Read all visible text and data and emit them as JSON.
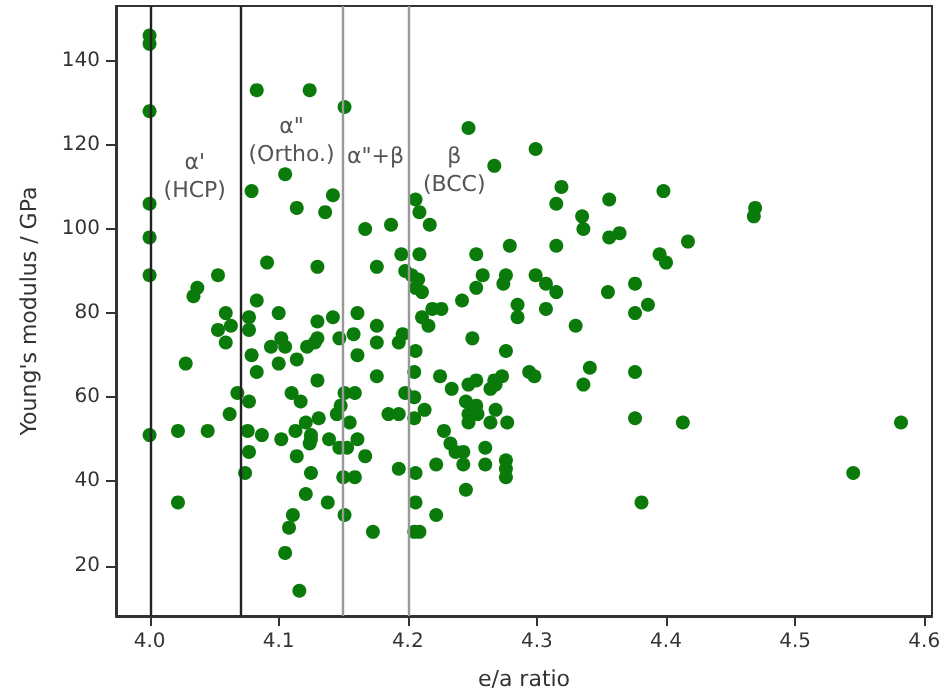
{
  "chart_data": {
    "type": "scatter",
    "xlabel": "e/a ratio",
    "ylabel": "Young's modulus / GPa",
    "xlim": [
      3.974,
      4.606
    ],
    "ylim": [
      8,
      153
    ],
    "xticks": [
      {
        "value": 4,
        "label": "4.0"
      },
      4.1,
      4.2,
      4.3,
      4.4,
      4.5,
      4.6
    ],
    "yticks": [
      20,
      40,
      60,
      80,
      100,
      120,
      140
    ],
    "grid": false,
    "marker": "circle",
    "ref_lines": [
      {
        "axis": "x",
        "value": 4.0,
        "color": "#222222"
      },
      {
        "axis": "x",
        "value": 4.07,
        "color": "#222222"
      },
      {
        "axis": "x",
        "value": 4.15,
        "color": "#999999"
      },
      {
        "axis": "x",
        "value": 4.2,
        "color": "#999999"
      }
    ],
    "annotations": [
      "α'\n(HCP)",
      "α\"\n(Ortho.)",
      "α\"+β",
      "β\n(BCC)"
    ],
    "series": [
      {
        "color": "#0a7a0a",
        "x": [
          4.0,
          4.0,
          4.0,
          4.0,
          4.0,
          4.0,
          4.0,
          4.083,
          4.124,
          4.151,
          4.105,
          4.079,
          4.142,
          4.114,
          4.136,
          4.167,
          4.187,
          4.091,
          4.13,
          4.176,
          4.195,
          4.198,
          4.053,
          4.037,
          4.034,
          4.083,
          4.059,
          4.053,
          4.063,
          4.059,
          4.077,
          4.077,
          4.1,
          4.13,
          4.142,
          4.161,
          4.176,
          4.196,
          4.102,
          4.094,
          4.105,
          4.122,
          4.128,
          4.13,
          4.147,
          4.158,
          4.176,
          4.193,
          4.079,
          4.1,
          4.114,
          4.161,
          4.028,
          4.083,
          4.176,
          4.13,
          4.068,
          4.077,
          4.11,
          4.117,
          4.151,
          4.159,
          4.148,
          4.198,
          4.062,
          4.145,
          4.185,
          4.193,
          4.131,
          4.155,
          4.121,
          4.113,
          4.125,
          4.022,
          4.045,
          4.076,
          4.087,
          4.102,
          4.125,
          4.124,
          4.139,
          4.147,
          4.153,
          4.161,
          4.167,
          4.077,
          4.114,
          4.125,
          4.193,
          4.074,
          4.15,
          4.159,
          4.121,
          4.022,
          4.138,
          4.151,
          4.111,
          4.108,
          4.173,
          4.105,
          4.116,
          4.247,
          4.299,
          4.267,
          4.319,
          4.206,
          4.315,
          4.356,
          4.398,
          4.209,
          4.217,
          4.335,
          4.336,
          4.356,
          4.364,
          4.279,
          4.315,
          4.417,
          4.209,
          4.253,
          4.395,
          4.4,
          4.203,
          4.208,
          4.206,
          4.211,
          4.258,
          4.253,
          4.276,
          4.274,
          4.299,
          4.307,
          4.315,
          4.242,
          4.285,
          4.285,
          4.307,
          4.33,
          4.355,
          4.376,
          4.376,
          4.386,
          4.211,
          4.219,
          4.226,
          4.216,
          4.206,
          4.25,
          4.276,
          4.205,
          4.225,
          4.247,
          4.253,
          4.267,
          4.273,
          4.264,
          4.268,
          4.294,
          4.298,
          4.341,
          4.336,
          4.376,
          4.234,
          4.205,
          4.245,
          4.253,
          4.247,
          4.254,
          4.268,
          4.213,
          4.205,
          4.247,
          4.264,
          4.277,
          4.228,
          4.233,
          4.237,
          4.243,
          4.243,
          4.26,
          4.26,
          4.276,
          4.276,
          4.276,
          4.206,
          4.222,
          4.245,
          4.206,
          4.222,
          4.205,
          4.209,
          4.376,
          4.413,
          4.381,
          4.469,
          4.468,
          4.582,
          4.545
        ],
        "values": [
          146,
          144,
          128,
          106,
          98,
          89,
          51,
          133,
          133,
          129,
          113,
          109,
          108,
          105,
          104,
          100,
          101,
          92,
          91,
          91,
          94,
          90,
          89,
          86,
          84,
          83,
          80,
          76,
          77,
          73,
          79,
          76,
          80,
          78,
          79,
          80,
          77,
          75,
          74,
          72,
          72,
          72,
          73,
          74,
          74,
          75,
          73,
          73,
          70,
          68,
          69,
          70,
          68,
          66,
          65,
          64,
          61,
          59,
          61,
          59,
          61,
          61,
          58,
          61,
          56,
          56,
          56,
          56,
          55,
          54,
          54,
          52,
          50,
          52,
          52,
          52,
          51,
          50,
          51,
          49,
          50,
          48,
          48,
          50,
          46,
          47,
          46,
          42,
          43,
          42,
          41,
          41,
          37,
          35,
          35,
          32,
          32,
          29,
          28,
          23,
          14,
          124,
          119,
          115,
          110,
          107,
          106,
          107,
          109,
          104,
          101,
          103,
          100,
          98,
          99,
          96,
          96,
          97,
          94,
          94,
          94,
          92,
          89,
          88,
          86,
          85,
          89,
          86,
          89,
          87,
          89,
          87,
          85,
          83,
          82,
          79,
          81,
          77,
          85,
          87,
          80,
          82,
          79,
          81,
          81,
          77,
          71,
          74,
          71,
          66,
          65,
          63,
          64,
          64,
          65,
          62,
          63,
          66,
          65,
          67,
          63,
          66,
          62,
          60,
          59,
          58,
          56,
          56,
          57,
          57,
          55,
          54,
          54,
          54,
          52,
          49,
          47,
          47,
          44,
          48,
          44,
          45,
          43,
          41,
          42,
          44,
          38,
          35,
          32,
          28,
          28,
          55,
          54,
          35,
          105,
          103,
          54,
          42
        ]
      }
    ]
  }
}
